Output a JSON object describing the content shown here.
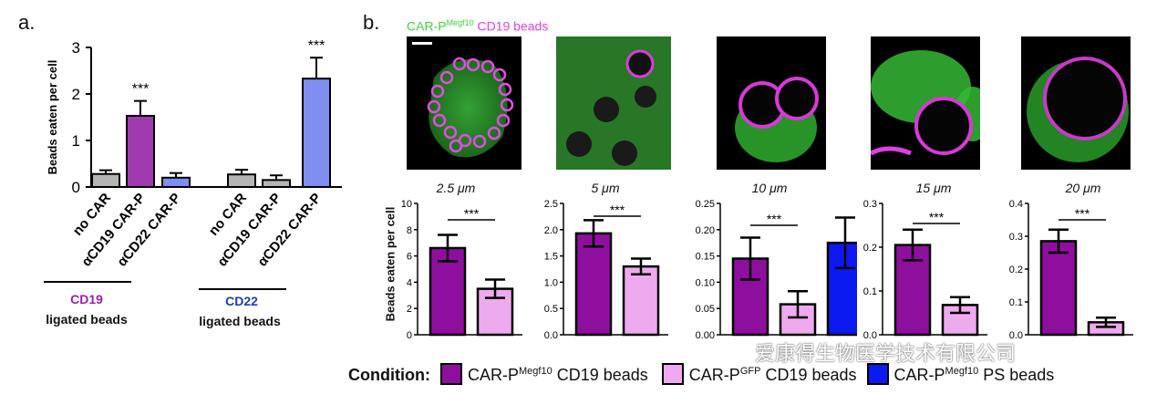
{
  "panel_a": {
    "label": "a.",
    "group_labels": [
      {
        "title": "CD19",
        "title_color": "#9b1fa8",
        "subtitle": "ligated beads"
      },
      {
        "title": "CD22",
        "title_color": "#1f3fa8",
        "subtitle": "ligated beads"
      }
    ]
  },
  "panel_b": {
    "label": "b.",
    "image_title": {
      "main": "CAR-P",
      "superscript": "Megf10",
      "rest": " CD19 beads",
      "main_color": "#3fd13f",
      "rest_color": "#e040e0"
    },
    "sizes": [
      "2.5",
      "5",
      "10",
      "15",
      "20"
    ],
    "size_unit": "μm",
    "ylabel": "Beads eaten per cell"
  },
  "legend": {
    "title": "Condition:",
    "items": [
      {
        "main": "CAR-P",
        "sup": "Megf10",
        "rest": " CD19 beads",
        "color": "#8e0f9e"
      },
      {
        "main": "CAR-P",
        "sup": "GFP",
        "rest": " CD19 beads",
        "color": "#eeaaee"
      },
      {
        "main": "CAR-P",
        "sup": "Megf10",
        "rest": " PS beads",
        "color": "#0a1af0"
      }
    ]
  },
  "watermark": "爱康得生物医学技术有限公司",
  "colors": {
    "gray": "#b5b5b5",
    "purple": "#a13ab0",
    "blue": "#7f8ef0",
    "dark_purple": "#8e0f9e",
    "light_pink": "#eeaaee",
    "bright_blue": "#0a1af0"
  },
  "chart_data": [
    {
      "type": "bar",
      "panel": "a",
      "ylabel": "Beads eaten per cell",
      "ylim": [
        0,
        3
      ],
      "yticks": [
        0,
        1,
        2,
        3
      ],
      "categories": [
        "no CAR",
        "αCD19 CAR-P",
        "αCD22 CAR-P",
        "no CAR",
        "αCD19 CAR-P",
        "αCD22 CAR-P"
      ],
      "values": [
        0.28,
        1.53,
        0.2,
        0.27,
        0.15,
        2.33
      ],
      "errors": [
        0.08,
        0.32,
        0.1,
        0.1,
        0.1,
        0.45
      ],
      "bar_colors": [
        "gray",
        "purple",
        "blue",
        "gray",
        "gray",
        "blue"
      ],
      "annotations": [
        "",
        "***",
        "",
        "",
        "",
        "***"
      ]
    },
    {
      "type": "bar",
      "panel": "b",
      "size": "2.5",
      "ylim": [
        0,
        10
      ],
      "yticks": [
        "0",
        "2",
        "4",
        "6",
        "8",
        "10"
      ],
      "values": [
        6.6,
        3.5
      ],
      "errors": [
        1.0,
        0.7
      ],
      "bar_colors": [
        "dark_purple",
        "light_pink"
      ],
      "significance": "***"
    },
    {
      "type": "bar",
      "panel": "b",
      "size": "5",
      "ylim": [
        0,
        2.5
      ],
      "yticks": [
        "0.0",
        "0.5",
        "1.0",
        "1.5",
        "2.0",
        "2.5"
      ],
      "values": [
        1.93,
        1.3
      ],
      "errors": [
        0.25,
        0.15
      ],
      "bar_colors": [
        "dark_purple",
        "light_pink"
      ],
      "significance": "***"
    },
    {
      "type": "bar",
      "panel": "b",
      "size": "10",
      "ylim": [
        0,
        0.25
      ],
      "yticks": [
        "0.00",
        "0.05",
        "0.10",
        "0.15",
        "0.20",
        "0.25"
      ],
      "values": [
        0.145,
        0.058,
        0.175
      ],
      "errors": [
        0.04,
        0.025,
        0.048
      ],
      "bar_colors": [
        "dark_purple",
        "light_pink",
        "bright_blue"
      ],
      "significance": "***"
    },
    {
      "type": "bar",
      "panel": "b",
      "size": "15",
      "ylim": [
        0,
        0.3
      ],
      "yticks": [
        "0.0",
        "0.1",
        "0.2",
        "0.3"
      ],
      "values": [
        0.205,
        0.068
      ],
      "errors": [
        0.035,
        0.018
      ],
      "bar_colors": [
        "dark_purple",
        "light_pink"
      ],
      "significance": "***"
    },
    {
      "type": "bar",
      "panel": "b",
      "size": "20",
      "ylim": [
        0,
        0.4
      ],
      "yticks": [
        "0.0",
        "0.1",
        "0.2",
        "0.3",
        "0.4"
      ],
      "values": [
        0.285,
        0.038
      ],
      "errors": [
        0.035,
        0.014
      ],
      "bar_colors": [
        "dark_purple",
        "light_pink"
      ],
      "significance": "***"
    }
  ]
}
